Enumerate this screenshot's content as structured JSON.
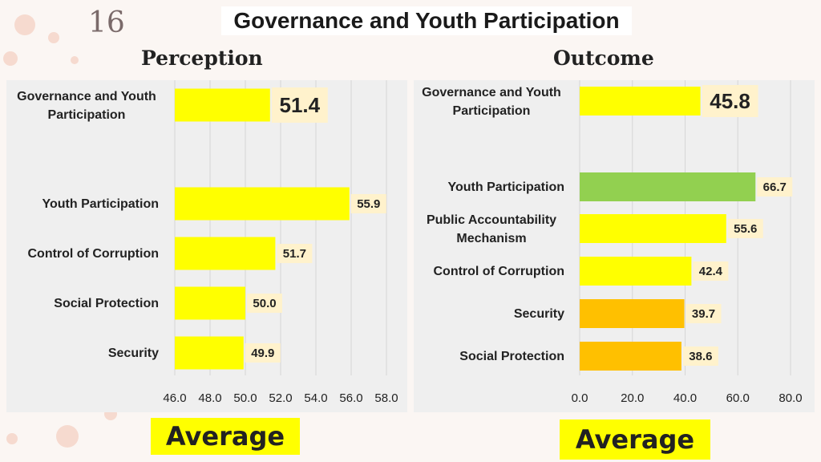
{
  "slide": {
    "number": "16",
    "title": "Governance and Youth Participation",
    "left_heading": "Perception",
    "right_heading": "Outcome",
    "left_badge": "Average",
    "right_badge": "Average"
  },
  "colors": {
    "yellow": "#ffff00",
    "green": "#92d050",
    "orange": "#ffc000",
    "label_bg": "#fff2cc"
  },
  "chart_data": [
    {
      "type": "bar",
      "orientation": "horizontal",
      "title": "Perception",
      "categories": [
        "Governance and Youth Participation",
        "Youth Participation",
        "Control of Corruption",
        "Social Protection",
        "Security"
      ],
      "values": [
        51.4,
        55.9,
        51.7,
        50.0,
        49.9
      ],
      "value_labels": [
        "51.4",
        "55.9",
        "51.7",
        "50.0",
        "49.9"
      ],
      "bar_colors": [
        "#ffff00",
        "#ffff00",
        "#ffff00",
        "#ffff00",
        "#ffff00"
      ],
      "xlim": [
        46,
        58
      ],
      "ticks": [
        "46.0",
        "48.0",
        "50.0",
        "52.0",
        "54.0",
        "56.0",
        "58.0"
      ],
      "grid": true
    },
    {
      "type": "bar",
      "orientation": "horizontal",
      "title": "Outcome",
      "categories": [
        "Governance and Youth Participation",
        "Youth Participation",
        "Public Accountability Mechanism",
        "Control of Corruption",
        "Security",
        "Social Protection"
      ],
      "values": [
        45.8,
        66.7,
        55.6,
        42.4,
        39.7,
        38.6
      ],
      "value_labels": [
        "45.8",
        "66.7",
        "55.6",
        "42.4",
        "39.7",
        "38.6"
      ],
      "bar_colors": [
        "#ffff00",
        "#92d050",
        "#ffff00",
        "#ffff00",
        "#ffc000",
        "#ffc000"
      ],
      "xlim": [
        0,
        80
      ],
      "ticks": [
        "0.0",
        "20.0",
        "40.0",
        "60.0",
        "80.0"
      ],
      "grid": true
    }
  ]
}
